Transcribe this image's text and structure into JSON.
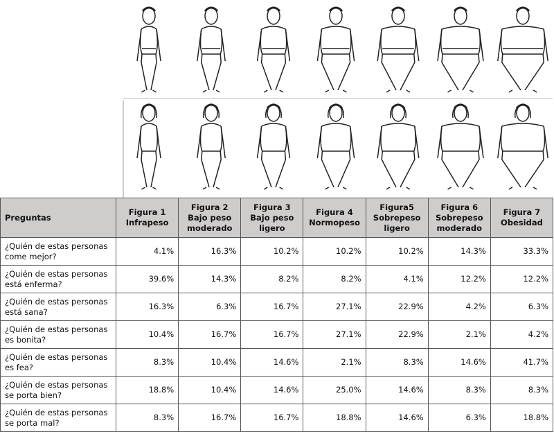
{
  "table": {
    "header": [
      "Preguntas",
      "Figura 1 Infrapeso",
      "Figura 2 Bajo peso moderado",
      "Figura 3 Bajo peso ligero",
      "Figura 4 Normopeso",
      "Figura5 Sobrepeso ligero",
      "Figura 6 Sobrepeso moderado",
      "Figura 7 Obesidad"
    ],
    "rows": [
      [
        "¿Quién de estas personas come mejor?",
        "4.1%",
        "16.3%",
        "10.2%",
        "10.2%",
        "10.2%",
        "14.3%",
        "33.3%"
      ],
      [
        "¿Quién  de estas personas está enferma?",
        "39.6%",
        "14.3%",
        "8.2%",
        "8.2%",
        "4.1%",
        "12.2%",
        "12.2%"
      ],
      [
        "¿Quién  de estas personas está sana?",
        "16.3%",
        "6.3%",
        "16.7%",
        "27.1%",
        "22.9%",
        "4.2%",
        "6.3%"
      ],
      [
        "¿Quién de estas personas es bonita?",
        "10.4%",
        "16.7%",
        "16.7%",
        "27.1%",
        "22.9%",
        "2.1%",
        "4.2%"
      ],
      [
        "¿Quién de estas personas es fea?",
        "8.3%",
        "10.4%",
        "14.6%",
        "2.1%",
        "8.3%",
        "14.6%",
        "41.7%"
      ],
      [
        "¿Quién de estas personas se porta bien?",
        "18.8%",
        "10.4%",
        "14.6%",
        "25.0%",
        "14.6%",
        "8.3%",
        "8.3%"
      ],
      [
        "¿Quién de estas personas se porta mal?",
        "8.3%",
        "16.7%",
        "16.7%",
        "18.8%",
        "14.6%",
        "6.3%",
        "18.8%"
      ]
    ]
  }
}
